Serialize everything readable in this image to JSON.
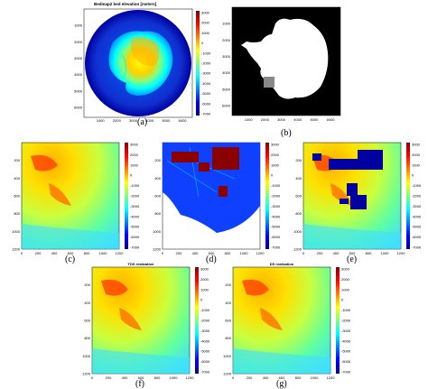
{
  "colormap_colors": [
    "#00007f",
    "#0000ff",
    "#0080ff",
    "#00ffff",
    "#80ff80",
    "#ffff00",
    "#ff8000",
    "#ff0000",
    "#7f0000"
  ],
  "figure": {
    "panels": [
      {
        "id": "a",
        "label": "(a)",
        "title": "Bedmap2 bed elevation [meters]",
        "xticks": [
          "1000",
          "2000",
          "3000",
          "4000",
          "5000",
          "6000"
        ],
        "yticks": [
          "1000",
          "2000",
          "3000",
          "4000",
          "5000",
          "6000"
        ],
        "cbar_ticks": [
          "3000",
          "2000",
          "1000",
          "0",
          "-1000",
          "-2000",
          "-3000",
          "-4000",
          "-5000",
          "-6000",
          "-7000"
        ]
      },
      {
        "id": "b",
        "label": "(b)",
        "title": "",
        "xticks": [
          "1000",
          "2000",
          "3000",
          "4000",
          "5000",
          "6000"
        ],
        "yticks": [
          "1000",
          "2000",
          "3000",
          "4000",
          "5000",
          "6000"
        ],
        "cbar_ticks": []
      },
      {
        "id": "c",
        "label": "(c)",
        "title": "",
        "xticks": [
          "0",
          "200",
          "400",
          "600",
          "800",
          "1000",
          "1200"
        ],
        "yticks": [
          "200",
          "400",
          "600",
          "800",
          "1000",
          "1200"
        ],
        "cbar_ticks": [
          "3000",
          "2000",
          "1000",
          "0",
          "-1000",
          "-2000",
          "-3000",
          "-4000",
          "-5000",
          "-6000",
          "-7000"
        ]
      },
      {
        "id": "d",
        "label": "(d)",
        "title": "",
        "xticks": [
          "0",
          "200",
          "400",
          "600",
          "800",
          "1000",
          "1200"
        ],
        "yticks": [
          "200",
          "400",
          "600",
          "800",
          "1000",
          "1200"
        ],
        "cbar_ticks": [
          "3000",
          "2000",
          "1000",
          "0",
          "-1000",
          "-2000",
          "-3000",
          "-4000",
          "-5000",
          "-6000",
          "-7000"
        ]
      },
      {
        "id": "e",
        "label": "(e)",
        "title": "",
        "xticks": [
          "0",
          "200",
          "400",
          "600",
          "800",
          "1000",
          "1200"
        ],
        "yticks": [
          "200",
          "400",
          "600",
          "800",
          "1000",
          "1200"
        ],
        "cbar_ticks": [
          "3000",
          "2000",
          "1000",
          "0",
          "-1000",
          "-2000",
          "-3000",
          "-4000",
          "-5000",
          "-6000",
          "-7000"
        ]
      },
      {
        "id": "f",
        "label": "(f)",
        "title": "TDS realization",
        "xticks": [
          "0",
          "200",
          "400",
          "600",
          "800",
          "1000",
          "1200"
        ],
        "yticks": [
          "200",
          "400",
          "600",
          "800",
          "1000",
          "1200"
        ],
        "cbar_ticks": [
          "3000",
          "2000",
          "1000",
          "0",
          "-1000",
          "-2000",
          "-3000",
          "-4000",
          "-5000",
          "-6000",
          "-7000"
        ]
      },
      {
        "id": "g",
        "label": "(g)",
        "title": "DS realization",
        "xticks": [
          "0",
          "200",
          "400",
          "600",
          "800",
          "1000",
          "1200"
        ],
        "yticks": [
          "200",
          "400",
          "600",
          "800",
          "1000",
          "1200"
        ],
        "cbar_ticks": [
          "3000",
          "2000",
          "1000",
          "0",
          "-1000",
          "-2000",
          "-3000",
          "-4000",
          "-5000",
          "-6000",
          "-7000"
        ]
      }
    ]
  }
}
